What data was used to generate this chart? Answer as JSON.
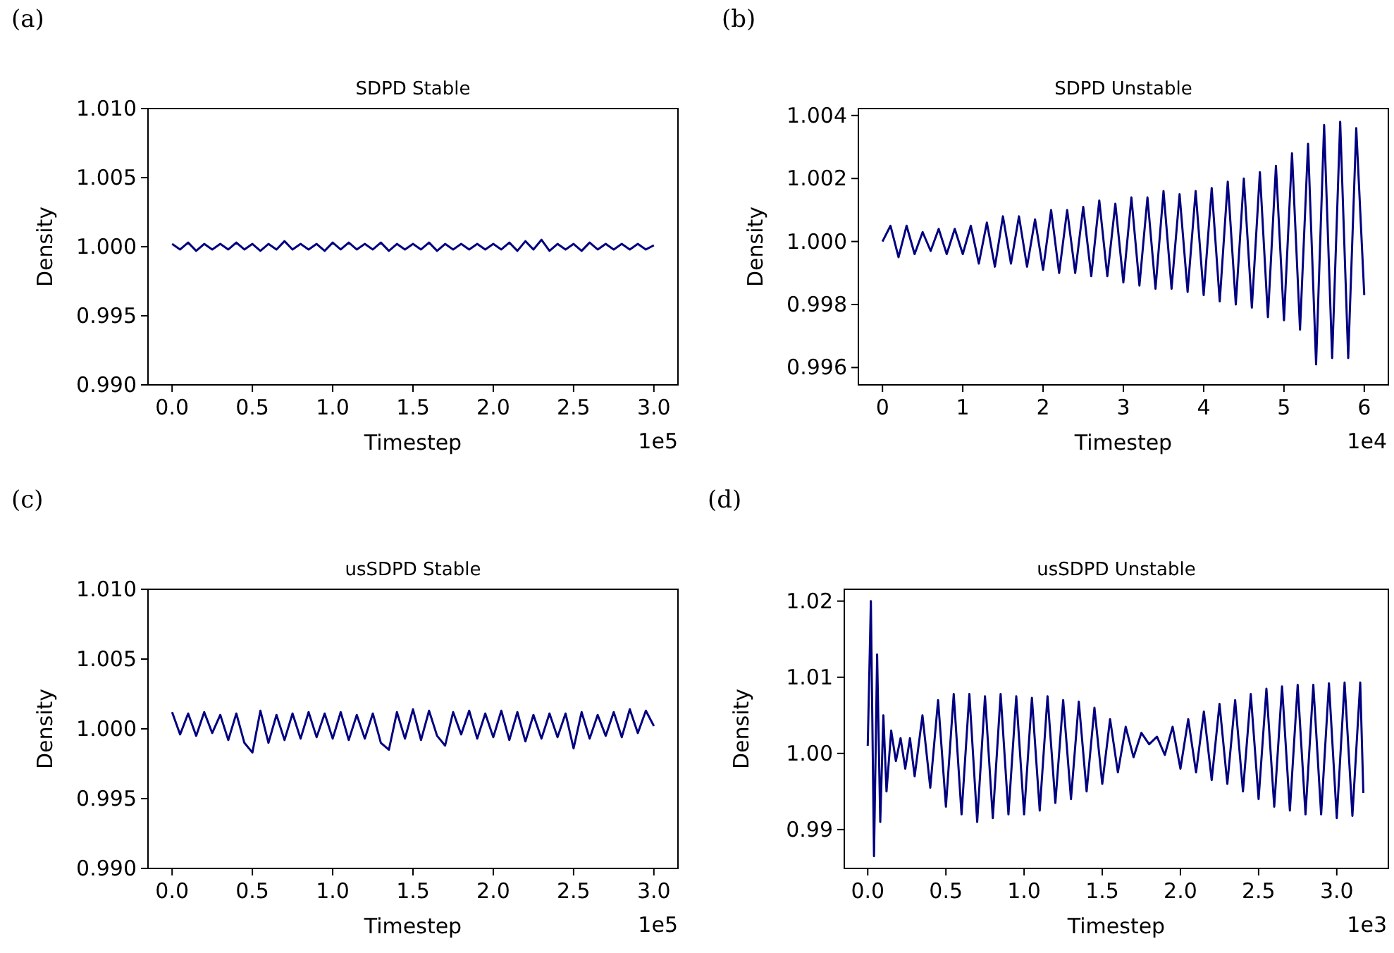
{
  "chart_data": [
    {
      "type": "line",
      "title": "SDPD Stable",
      "xlabel": "Timestep",
      "ylabel": "Density",
      "annotations": [
        "(a)",
        "1e5"
      ],
      "line_style": "solid",
      "grid": false,
      "xlim": [
        -0.15,
        3.15
      ],
      "xticks": [
        {
          "value": 0,
          "label": "0.0"
        },
        0.5,
        {
          "value": 1,
          "label": "1.0"
        },
        1.5,
        {
          "value": 2,
          "label": "2.0"
        },
        2.5,
        {
          "value": 3,
          "label": "3.0"
        }
      ],
      "ylim": [
        0.99,
        1.01
      ],
      "yticks": [
        {
          "value": 0.99,
          "label": "0.990"
        },
        0.995,
        {
          "value": 1.0,
          "label": "1.000"
        },
        1.005,
        {
          "value": 1.01,
          "label": "1.010"
        }
      ],
      "x": [
        0,
        0.05,
        0.1,
        0.15,
        0.2,
        0.25,
        0.3,
        0.35,
        0.4,
        0.45,
        0.5,
        0.55,
        0.6,
        0.65,
        0.7,
        0.75,
        0.8,
        0.85,
        0.9,
        0.95,
        1.0,
        1.05,
        1.1,
        1.15,
        1.2,
        1.25,
        1.3,
        1.35,
        1.4,
        1.45,
        1.5,
        1.55,
        1.6,
        1.65,
        1.7,
        1.75,
        1.8,
        1.85,
        1.9,
        1.95,
        2.0,
        2.05,
        2.1,
        2.15,
        2.2,
        2.25,
        2.3,
        2.35,
        2.4,
        2.45,
        2.5,
        2.55,
        2.6,
        2.65,
        2.7,
        2.75,
        2.8,
        2.85,
        2.9,
        2.95,
        3.0
      ],
      "series": [
        {
          "color": "#000080",
          "values": [
            1.0002,
            0.9998,
            1.0003,
            0.9997,
            1.0002,
            0.9998,
            1.0002,
            0.9998,
            1.0003,
            0.9998,
            1.0002,
            0.9997,
            1.0002,
            0.9998,
            1.0004,
            0.9998,
            1.0002,
            0.9998,
            1.0002,
            0.9997,
            1.0003,
            0.9998,
            1.0003,
            0.9998,
            1.0002,
            0.9998,
            1.0003,
            0.9997,
            1.0002,
            0.9998,
            1.0002,
            0.9998,
            1.0003,
            0.9997,
            1.0002,
            0.9998,
            1.0002,
            0.9998,
            1.0002,
            0.9998,
            1.0002,
            0.9998,
            1.0003,
            0.9997,
            1.0004,
            0.9998,
            1.0005,
            0.9997,
            1.0002,
            0.9998,
            1.0002,
            0.9997,
            1.0003,
            0.9998,
            1.0002,
            0.9998,
            1.0002,
            0.9998,
            1.0002,
            0.9998,
            1.0001
          ]
        }
      ]
    },
    {
      "type": "line",
      "title": "SDPD Unstable",
      "xlabel": "Timestep",
      "ylabel": "Density",
      "annotations": [
        "(b)",
        "1e4"
      ],
      "line_style": "solid",
      "grid": false,
      "xlim": [
        -0.3,
        6.3
      ],
      "xticks": [
        0,
        1,
        2,
        3,
        4,
        5,
        6
      ],
      "ylim": [
        0.99545,
        1.00422
      ],
      "yticks": [
        0.996,
        0.998,
        {
          "value": 1.0,
          "label": "1.000"
        },
        1.002,
        1.004
      ],
      "x": [
        0,
        0.1,
        0.2,
        0.3,
        0.4,
        0.5,
        0.6,
        0.7,
        0.8,
        0.9,
        1.0,
        1.1,
        1.2,
        1.3,
        1.4,
        1.5,
        1.6,
        1.7,
        1.8,
        1.9,
        2.0,
        2.1,
        2.2,
        2.3,
        2.4,
        2.5,
        2.6,
        2.7,
        2.8,
        2.9,
        3.0,
        3.1,
        3.2,
        3.3,
        3.4,
        3.5,
        3.6,
        3.7,
        3.8,
        3.9,
        4.0,
        4.1,
        4.2,
        4.3,
        4.4,
        4.5,
        4.6,
        4.7,
        4.8,
        4.9,
        5.0,
        5.1,
        5.2,
        5.3,
        5.4,
        5.5,
        5.6,
        5.7,
        5.8,
        5.9,
        6.0
      ],
      "series": [
        {
          "color": "#000080",
          "values": [
            1.0,
            1.0005,
            0.9995,
            1.0005,
            0.9996,
            1.0003,
            0.9997,
            1.0004,
            0.9996,
            1.0004,
            0.9996,
            1.0005,
            0.9993,
            1.0006,
            0.9992,
            1.0008,
            0.9993,
            1.0008,
            0.9992,
            1.0007,
            0.9991,
            1.001,
            0.999,
            1.001,
            0.999,
            1.0011,
            0.9989,
            1.0013,
            0.9989,
            1.0012,
            0.9987,
            1.0014,
            0.9986,
            1.0014,
            0.9985,
            1.0016,
            0.9985,
            1.0015,
            0.9984,
            1.0016,
            0.9983,
            1.0017,
            0.9981,
            1.0019,
            0.998,
            1.002,
            0.9979,
            1.0022,
            0.9976,
            1.0024,
            0.9975,
            1.0028,
            0.9972,
            1.0031,
            0.9961,
            1.0037,
            0.9963,
            1.0038,
            0.9963,
            1.0036,
            0.9983
          ]
        }
      ]
    },
    {
      "type": "line",
      "title": "usSDPD Stable",
      "xlabel": "Timestep",
      "ylabel": "Density",
      "annotations": [
        "(c)",
        "1e5"
      ],
      "line_style": "solid",
      "grid": false,
      "xlim": [
        -0.15,
        3.15
      ],
      "xticks": [
        {
          "value": 0,
          "label": "0.0"
        },
        0.5,
        {
          "value": 1,
          "label": "1.0"
        },
        1.5,
        {
          "value": 2,
          "label": "2.0"
        },
        2.5,
        {
          "value": 3,
          "label": "3.0"
        }
      ],
      "ylim": [
        0.99,
        1.01
      ],
      "yticks": [
        {
          "value": 0.99,
          "label": "0.990"
        },
        0.995,
        {
          "value": 1.0,
          "label": "1.000"
        },
        1.005,
        {
          "value": 1.01,
          "label": "1.010"
        }
      ],
      "x": [
        0,
        0.05,
        0.1,
        0.15,
        0.2,
        0.25,
        0.3,
        0.35,
        0.4,
        0.45,
        0.5,
        0.55,
        0.6,
        0.65,
        0.7,
        0.75,
        0.8,
        0.85,
        0.9,
        0.95,
        1.0,
        1.05,
        1.1,
        1.15,
        1.2,
        1.25,
        1.3,
        1.35,
        1.4,
        1.45,
        1.5,
        1.55,
        1.6,
        1.65,
        1.7,
        1.75,
        1.8,
        1.85,
        1.9,
        1.95,
        2.0,
        2.05,
        2.1,
        2.15,
        2.2,
        2.25,
        2.3,
        2.35,
        2.4,
        2.45,
        2.5,
        2.55,
        2.6,
        2.65,
        2.7,
        2.75,
        2.8,
        2.85,
        2.9,
        2.95,
        3.0
      ],
      "series": [
        {
          "color": "#000080",
          "values": [
            1.0012,
            0.9996,
            1.0011,
            0.9995,
            1.0012,
            0.9997,
            1.001,
            0.9992,
            1.0011,
            0.999,
            0.9983,
            1.0013,
            0.999,
            1.001,
            0.9992,
            1.0011,
            0.9993,
            1.0012,
            0.9994,
            1.0011,
            0.9993,
            1.0012,
            0.9992,
            1.001,
            0.9993,
            1.0011,
            0.999,
            0.9985,
            1.0012,
            0.9993,
            1.0014,
            0.9992,
            1.0013,
            0.9995,
            0.9988,
            1.0012,
            0.9996,
            1.0013,
            0.9993,
            1.0011,
            0.9994,
            1.0013,
            0.9992,
            1.0012,
            0.9991,
            1.001,
            0.9993,
            1.0011,
            0.9994,
            1.0011,
            0.9986,
            1.0012,
            0.9993,
            1.001,
            0.9995,
            1.0012,
            0.9994,
            1.0014,
            0.9997,
            1.0013,
            1.0002
          ]
        }
      ]
    },
    {
      "type": "line",
      "title": "usSDPD Unstable",
      "xlabel": "Timestep",
      "ylabel": "Density",
      "annotations": [
        "(d)",
        "1e3"
      ],
      "line_style": "solid",
      "grid": false,
      "xlim": [
        -0.15,
        3.33
      ],
      "xticks": [
        {
          "value": 0,
          "label": "0.0"
        },
        0.5,
        {
          "value": 1,
          "label": "1.0"
        },
        1.5,
        {
          "value": 2,
          "label": "2.0"
        },
        2.5,
        {
          "value": 3,
          "label": "3.0"
        }
      ],
      "ylim": [
        0.9849,
        1.02155
      ],
      "yticks": [
        0.99,
        {
          "value": 1.0,
          "label": "1.00"
        },
        1.01,
        1.02
      ],
      "x": [
        0,
        0.02,
        0.04,
        0.06,
        0.08,
        0.1,
        0.12,
        0.15,
        0.18,
        0.21,
        0.24,
        0.27,
        0.3,
        0.35,
        0.4,
        0.45,
        0.5,
        0.55,
        0.6,
        0.65,
        0.7,
        0.75,
        0.8,
        0.85,
        0.9,
        0.95,
        1.0,
        1.05,
        1.1,
        1.15,
        1.2,
        1.25,
        1.3,
        1.35,
        1.4,
        1.45,
        1.5,
        1.55,
        1.6,
        1.65,
        1.7,
        1.75,
        1.8,
        1.85,
        1.9,
        1.95,
        2.0,
        2.05,
        2.1,
        2.15,
        2.2,
        2.25,
        2.3,
        2.35,
        2.4,
        2.45,
        2.5,
        2.55,
        2.6,
        2.65,
        2.7,
        2.75,
        2.8,
        2.85,
        2.9,
        2.95,
        3.0,
        3.05,
        3.1,
        3.15,
        3.17
      ],
      "series": [
        {
          "color": "#000080",
          "values": [
            1.001,
            1.02,
            0.9865,
            1.013,
            0.991,
            1.005,
            0.995,
            1.003,
            0.999,
            1.002,
            0.998,
            1.002,
            0.997,
            1.005,
            0.9955,
            1.007,
            0.993,
            1.0078,
            0.992,
            1.0078,
            0.991,
            1.0075,
            0.9915,
            1.0078,
            0.992,
            1.0075,
            0.992,
            1.0073,
            0.9925,
            1.0075,
            0.9935,
            1.007,
            0.994,
            1.0068,
            0.995,
            1.006,
            0.996,
            1.0045,
            0.9975,
            1.0035,
            0.9995,
            1.0027,
            1.0012,
            1.0022,
            0.9998,
            1.0035,
            0.998,
            1.0045,
            0.9975,
            1.0055,
            0.9965,
            1.0065,
            0.996,
            1.007,
            0.995,
            1.0078,
            0.994,
            1.0085,
            0.993,
            1.0088,
            0.9925,
            1.009,
            0.992,
            1.009,
            0.992,
            1.0092,
            0.9915,
            1.0093,
            0.9918,
            1.0093,
            0.9948
          ]
        }
      ]
    }
  ]
}
